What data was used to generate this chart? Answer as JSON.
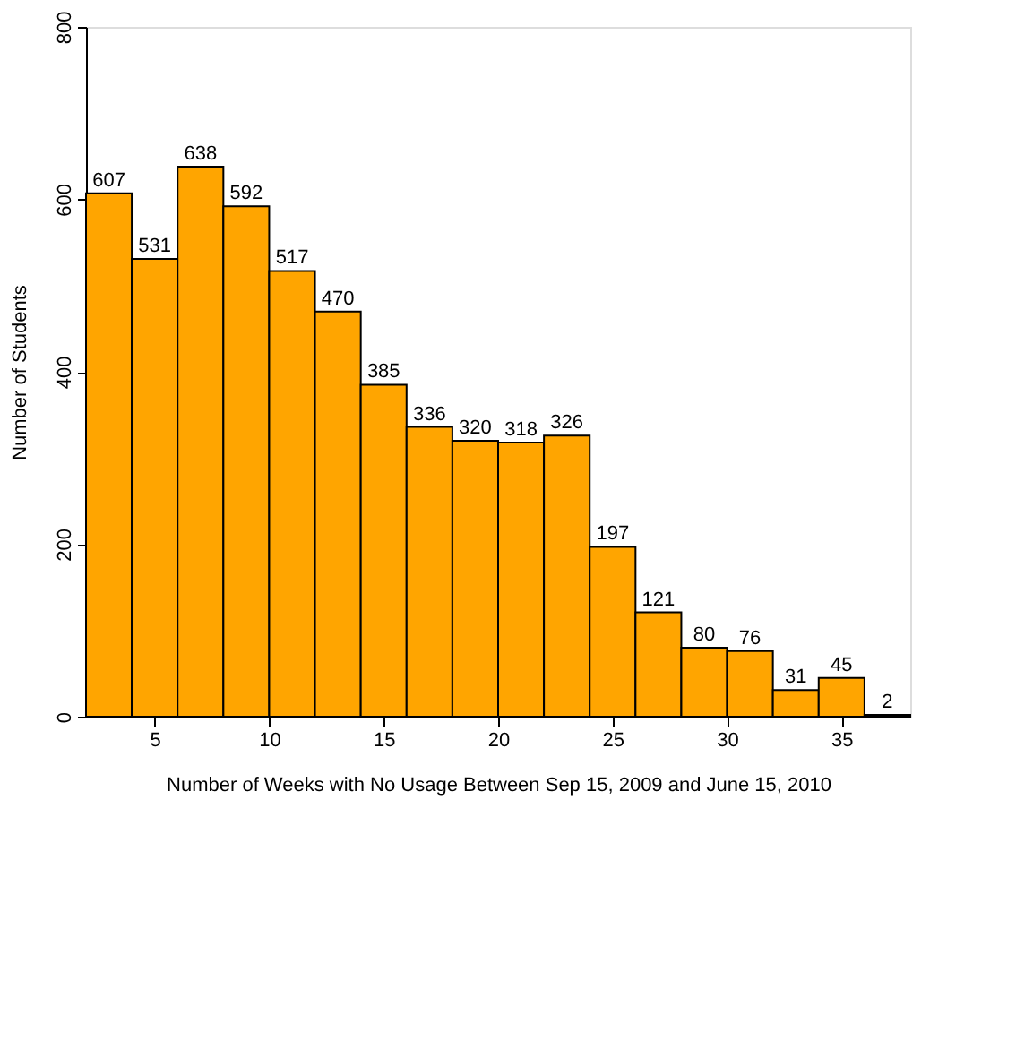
{
  "chart_data": {
    "type": "histogram",
    "xlabel": "Number of Weeks with No Usage Between Sep 15, 2009 and June 15, 2010",
    "ylabel": "Number of Students",
    "bins": [
      2,
      4,
      6,
      8,
      10,
      12,
      14,
      16,
      18,
      20,
      22,
      24,
      26,
      28,
      30,
      32,
      34,
      36,
      38
    ],
    "values": [
      607,
      531,
      638,
      592,
      517,
      470,
      385,
      336,
      320,
      318,
      326,
      197,
      121,
      80,
      76,
      31,
      45,
      2
    ],
    "color": "#ffa500",
    "xlim": [
      2,
      38
    ],
    "xticks": [
      5,
      10,
      15,
      20,
      25,
      30,
      35
    ],
    "ylim": [
      0,
      800
    ],
    "yticks": [
      0,
      200,
      400,
      600,
      800
    ],
    "data_labels": true,
    "grid": false
  }
}
